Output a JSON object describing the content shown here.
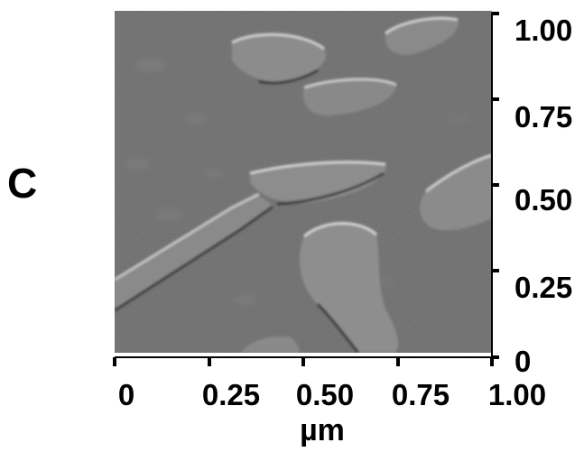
{
  "panel": {
    "label": "C"
  },
  "image": {
    "content": "AFM amplitude/deflection image, grayscale; elongated aggregates with bright edges on a flat gray background",
    "background_color": "#6a6a6a"
  },
  "axes": {
    "x_unit": "µm",
    "x_ticks": [
      "0",
      "0.25",
      "0.50",
      "0.75",
      "1.00"
    ],
    "y_ticks": [
      "1.00",
      "0.75",
      "0.50",
      "0.25",
      "0"
    ]
  }
}
